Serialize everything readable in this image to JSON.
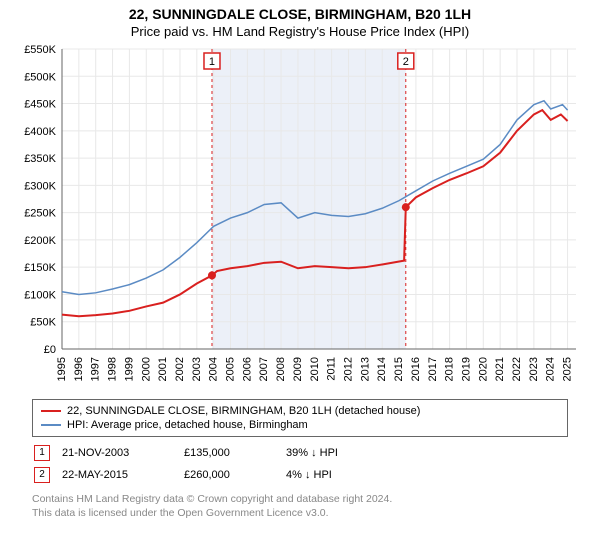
{
  "title": "22, SUNNINGDALE CLOSE, BIRMINGHAM, B20 1LH",
  "subtitle": "Price paid vs. HM Land Registry's House Price Index (HPI)",
  "chart": {
    "type": "line",
    "background_color": "#ffffff",
    "grid_color": "#e8e8e8",
    "axis_color": "#666666",
    "highlight_band_color": "#ecf0f8",
    "highlight_band_xstart": 2003.9,
    "highlight_band_xend": 2015.4,
    "xlim": [
      1995,
      2025.5
    ],
    "ylim": [
      0,
      550
    ],
    "ytick_step": 50,
    "yticks": [
      "£0",
      "£50K",
      "£100K",
      "£150K",
      "£200K",
      "£250K",
      "£300K",
      "£350K",
      "£400K",
      "£450K",
      "£500K",
      "£550K"
    ],
    "xticks": [
      1995,
      1996,
      1997,
      1998,
      1999,
      2000,
      2001,
      2002,
      2003,
      2004,
      2005,
      2006,
      2007,
      2008,
      2009,
      2010,
      2011,
      2012,
      2013,
      2014,
      2015,
      2016,
      2017,
      2018,
      2019,
      2020,
      2021,
      2022,
      2023,
      2024,
      2025
    ],
    "label_fontsize": 11,
    "series": [
      {
        "name": "22, SUNNINGDALE CLOSE, BIRMINGHAM, B20 1LH (detached house)",
        "color": "#d9201f",
        "width": 2,
        "data": [
          [
            1995,
            63
          ],
          [
            1996,
            60
          ],
          [
            1997,
            62
          ],
          [
            1998,
            65
          ],
          [
            1999,
            70
          ],
          [
            2000,
            78
          ],
          [
            2001,
            85
          ],
          [
            2002,
            100
          ],
          [
            2003,
            120
          ],
          [
            2003.9,
            135
          ],
          [
            2004.2,
            143
          ],
          [
            2005,
            148
          ],
          [
            2006,
            152
          ],
          [
            2007,
            158
          ],
          [
            2008,
            160
          ],
          [
            2009,
            148
          ],
          [
            2010,
            152
          ],
          [
            2011,
            150
          ],
          [
            2012,
            148
          ],
          [
            2013,
            150
          ],
          [
            2014,
            155
          ],
          [
            2015.3,
            162
          ],
          [
            2015.4,
            260
          ],
          [
            2016,
            278
          ],
          [
            2017,
            295
          ],
          [
            2018,
            310
          ],
          [
            2019,
            322
          ],
          [
            2020,
            335
          ],
          [
            2021,
            360
          ],
          [
            2022,
            400
          ],
          [
            2023,
            430
          ],
          [
            2023.5,
            438
          ],
          [
            2024,
            420
          ],
          [
            2024.6,
            430
          ],
          [
            2025,
            418
          ]
        ]
      },
      {
        "name": "HPI: Average price, detached house, Birmingham",
        "color": "#5b8bc4",
        "width": 1.5,
        "data": [
          [
            1995,
            105
          ],
          [
            1996,
            100
          ],
          [
            1997,
            103
          ],
          [
            1998,
            110
          ],
          [
            1999,
            118
          ],
          [
            2000,
            130
          ],
          [
            2001,
            145
          ],
          [
            2002,
            168
          ],
          [
            2003,
            195
          ],
          [
            2004,
            225
          ],
          [
            2005,
            240
          ],
          [
            2006,
            250
          ],
          [
            2007,
            265
          ],
          [
            2008,
            268
          ],
          [
            2009,
            240
          ],
          [
            2010,
            250
          ],
          [
            2011,
            245
          ],
          [
            2012,
            243
          ],
          [
            2013,
            248
          ],
          [
            2014,
            258
          ],
          [
            2015,
            272
          ],
          [
            2016,
            290
          ],
          [
            2017,
            308
          ],
          [
            2018,
            322
          ],
          [
            2019,
            335
          ],
          [
            2020,
            348
          ],
          [
            2021,
            375
          ],
          [
            2022,
            420
          ],
          [
            2023,
            448
          ],
          [
            2023.6,
            455
          ],
          [
            2024,
            440
          ],
          [
            2024.7,
            448
          ],
          [
            2025,
            438
          ]
        ]
      }
    ],
    "markers": [
      {
        "num": "1",
        "x": 2003.9,
        "y": 135,
        "color": "#d9201f",
        "line_dash": "3,3"
      },
      {
        "num": "2",
        "x": 2015.4,
        "y": 260,
        "color": "#d9201f",
        "line_dash": "3,3"
      }
    ]
  },
  "legend": {
    "items": [
      {
        "color": "#d9201f",
        "label": "22, SUNNINGDALE CLOSE, BIRMINGHAM, B20 1LH (detached house)"
      },
      {
        "color": "#5b8bc4",
        "label": "HPI: Average price, detached house, Birmingham"
      }
    ]
  },
  "marker_rows": [
    {
      "num": "1",
      "date": "21-NOV-2003",
      "price": "£135,000",
      "diff": "39% ↓ HPI",
      "color": "#d9201f"
    },
    {
      "num": "2",
      "date": "22-MAY-2015",
      "price": "£260,000",
      "diff": "4% ↓ HPI",
      "color": "#d9201f"
    }
  ],
  "footer_line1": "Contains HM Land Registry data © Crown copyright and database right 2024.",
  "footer_line2": "This data is licensed under the Open Government Licence v3.0."
}
